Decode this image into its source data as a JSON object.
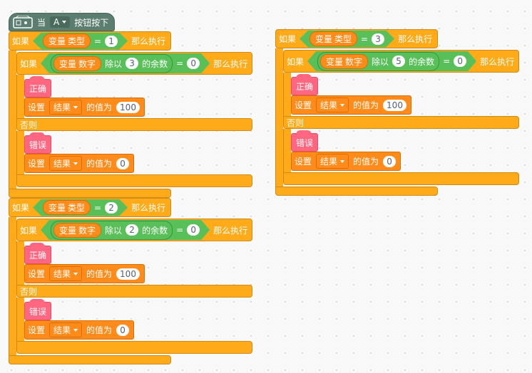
{
  "scripts": [
    {
      "hat": {
        "when": "当",
        "key": "A",
        "event": "按钮按下"
      },
      "blocks": [
        {
          "if": "如果",
          "condition": {
            "var_label": "变量",
            "var_name": "类型",
            "op": "=",
            "value": 1
          },
          "then": "那么执行",
          "body": [
            {
              "if": "如果",
              "condition": {
                "var_label": "变量",
                "var_name": "数字",
                "mod": "除以",
                "divisor": 3,
                "remainder": "的余数",
                "op": "=",
                "value": 0
              },
              "then": "那么执行",
              "true_branch": [
                {
                  "event": "正确"
                },
                {
                  "set": "设置",
                  "var": "结果",
                  "to": "的值为",
                  "value": 100
                }
              ],
              "else": "否则",
              "false_branch": [
                {
                  "event": "错误"
                },
                {
                  "set": "设置",
                  "var": "结果",
                  "to": "的值为",
                  "value": 0
                }
              ]
            }
          ]
        },
        {
          "if": "如果",
          "condition": {
            "var_label": "变量",
            "var_name": "类型",
            "op": "=",
            "value": 2
          },
          "then": "那么执行",
          "body": [
            {
              "if": "如果",
              "condition": {
                "var_label": "变量",
                "var_name": "数字",
                "mod": "除以",
                "divisor": 2,
                "remainder": "的余数",
                "op": "=",
                "value": 0
              },
              "then": "那么执行",
              "true_branch": [
                {
                  "event": "正确"
                },
                {
                  "set": "设置",
                  "var": "结果",
                  "to": "的值为",
                  "value": 100
                }
              ],
              "else": "否则",
              "false_branch": [
                {
                  "event": "错误"
                },
                {
                  "set": "设置",
                  "var": "结果",
                  "to": "的值为",
                  "value": 0
                }
              ]
            }
          ]
        }
      ]
    },
    {
      "blocks": [
        {
          "if": "如果",
          "condition": {
            "var_label": "变量",
            "var_name": "类型",
            "op": "=",
            "value": 3
          },
          "then": "那么执行",
          "body": [
            {
              "if": "如果",
              "condition": {
                "var_label": "变量",
                "var_name": "数字",
                "mod": "除以",
                "divisor": 5,
                "remainder": "的余数",
                "op": "=",
                "value": 0
              },
              "then": "那么执行",
              "true_branch": [
                {
                  "event": "正确"
                },
                {
                  "set": "设置",
                  "var": "结果",
                  "to": "的值为",
                  "value": 100
                }
              ],
              "else": "否则",
              "false_branch": [
                {
                  "event": "错误"
                },
                {
                  "set": "设置",
                  "var": "结果",
                  "to": "的值为",
                  "value": 0
                }
              ]
            }
          ]
        }
      ]
    }
  ]
}
